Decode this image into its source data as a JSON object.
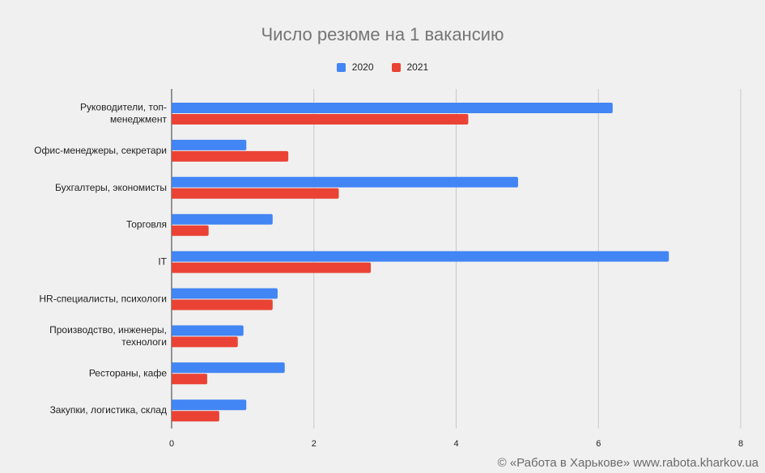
{
  "chart_data": {
    "type": "bar",
    "orientation": "horizontal",
    "title": "Число резюме на 1 вакансию",
    "categories": [
      [
        "Руководители, топ-",
        "менеджмент"
      ],
      [
        "Офис-менеджеры, секретари"
      ],
      [
        "Бухгалтеры, экономисты"
      ],
      [
        "Торговля"
      ],
      [
        "IT"
      ],
      [
        "HR-специалисты, психологи"
      ],
      [
        "Производство, инженеры,",
        "технологи"
      ],
      [
        "Рестораны, кафе"
      ],
      [
        "Закупки, логистика, склад"
      ]
    ],
    "series": [
      {
        "name": "2020",
        "color": "#4285f4",
        "values": [
          6.2,
          1.05,
          4.87,
          1.42,
          6.99,
          1.49,
          1.01,
          1.59,
          1.05
        ]
      },
      {
        "name": "2021",
        "color": "#ea4335",
        "values": [
          4.17,
          1.64,
          2.35,
          0.52,
          2.8,
          1.42,
          0.93,
          0.5,
          0.67
        ]
      }
    ],
    "xlim": [
      0,
      8
    ],
    "xticks": [
      "0",
      "2",
      "4",
      "6",
      "8"
    ],
    "grid": true,
    "legend_position": "top"
  },
  "watermark": "© «Работа в Харькове» www.rabota.kharkov.ua"
}
